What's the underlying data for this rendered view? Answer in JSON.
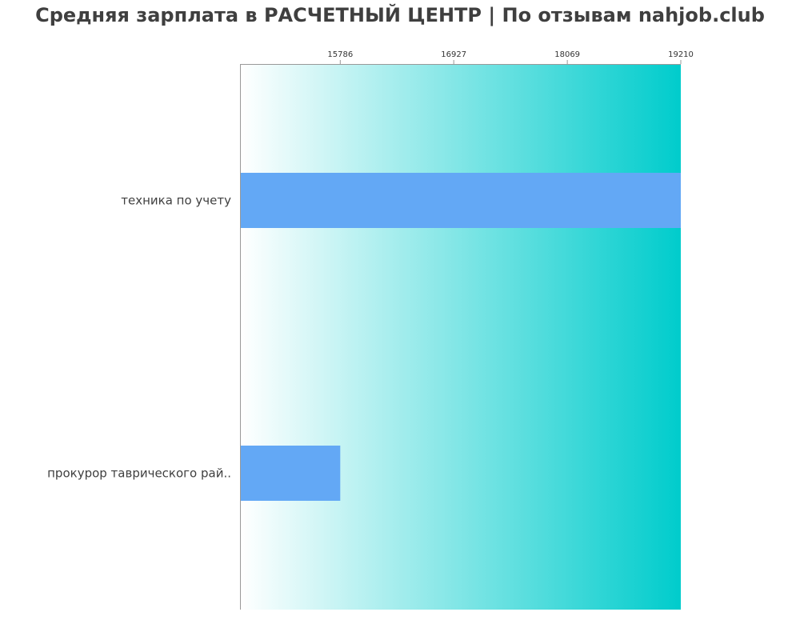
{
  "chart_data": {
    "type": "bar",
    "orientation": "horizontal",
    "title": "Средняя зарплата в РАСЧЕТНЫЙ ЦЕНТР | По отзывам nahjob.club",
    "categories": [
      "техника по учету",
      "прокурор таврического рай.."
    ],
    "values": [
      19210,
      15786
    ],
    "x_ticks": [
      15786,
      16927,
      18069,
      19210
    ],
    "xlim": [
      14786,
      19210
    ],
    "x_axis_position": "top",
    "grid": false,
    "colors": {
      "bar": "#63a8f5",
      "background_start": "#ffffff",
      "background_end": "#00cccc",
      "axis": "#999999",
      "text": "#3f3f3f"
    }
  }
}
